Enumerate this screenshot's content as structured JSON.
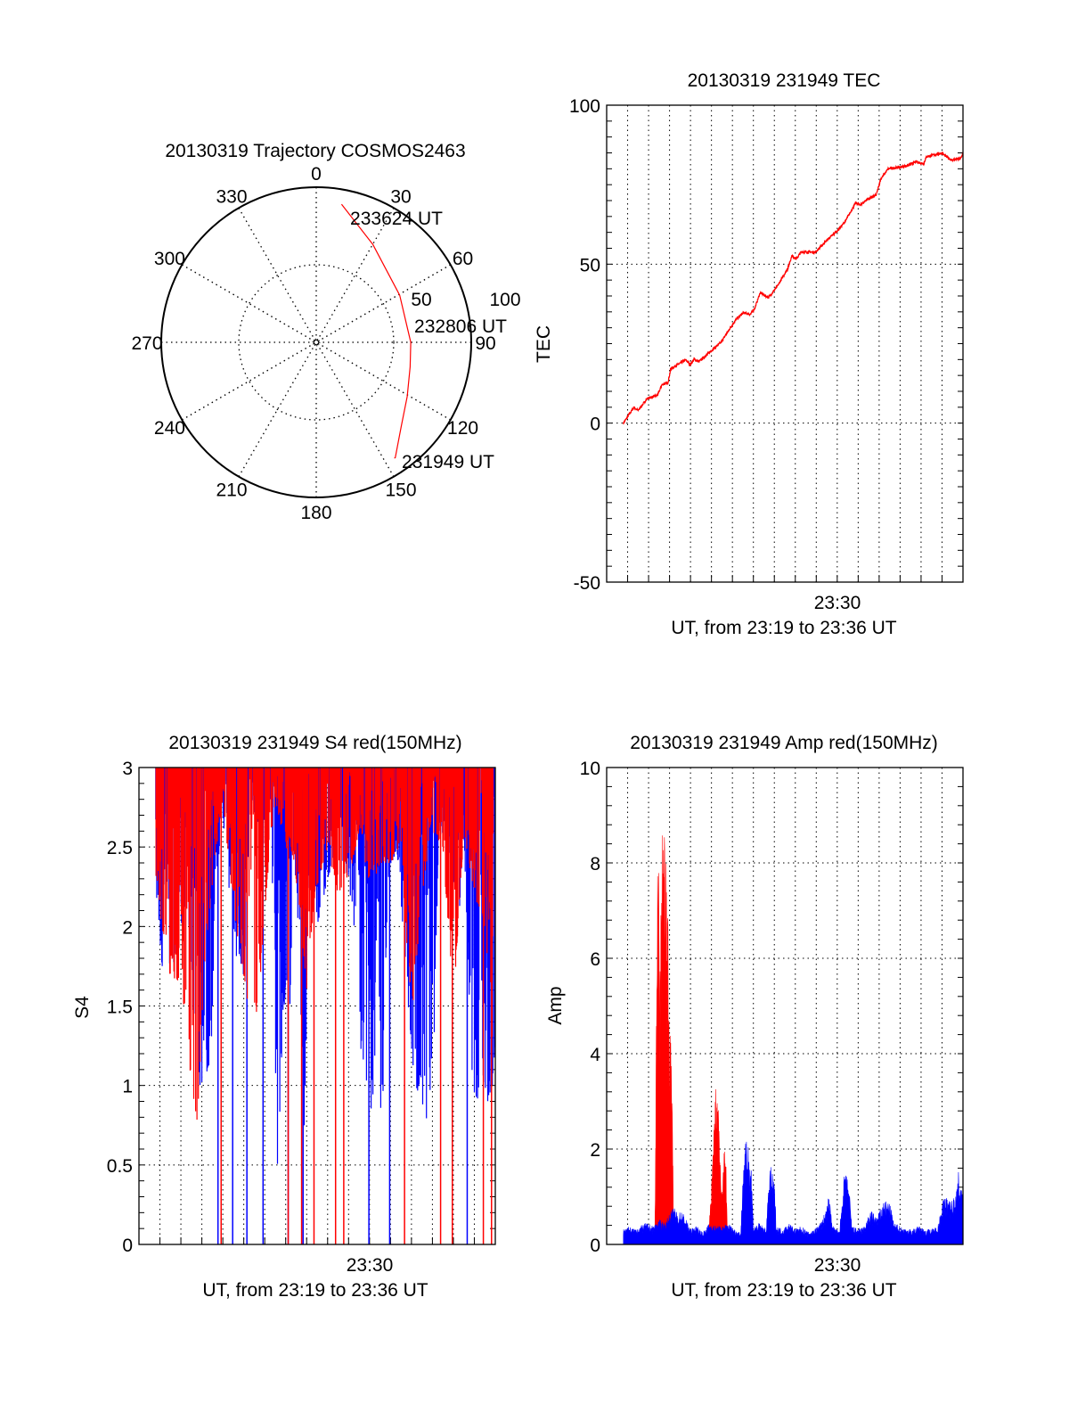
{
  "colors": {
    "red": "#ff0000",
    "blue": "#0000ff",
    "axis": "#000000"
  },
  "chart_data": [
    {
      "id": "polar",
      "type": "scatter",
      "title": "20130319 Trajectory COSMOS2463",
      "azimuth_labels": [
        "0",
        "30",
        "60",
        "90",
        "120",
        "150",
        "180",
        "210",
        "240",
        "270",
        "300",
        "330"
      ],
      "zenith_labels": [
        "50",
        "100"
      ],
      "r_max": 100,
      "trajectory": [
        {
          "az": 146,
          "r": 90
        },
        {
          "az": 145.6,
          "r": 90.2
        },
        {
          "az": 134.7,
          "r": 77.1
        },
        {
          "az": 120.8,
          "r": 68.3
        },
        {
          "az": 104.6,
          "r": 62.6
        },
        {
          "az": 90,
          "r": 61
        },
        {
          "az": 83,
          "r": 59.7
        },
        {
          "az": 60.6,
          "r": 61.8
        },
        {
          "az": 30.1,
          "r": 72.9
        },
        {
          "az": 10.4,
          "r": 90.5
        }
      ],
      "time_labels": [
        "231949 UT",
        "232806 UT",
        "233624 UT"
      ]
    },
    {
      "id": "tec",
      "type": "line",
      "title": "20130319 231949 TEC",
      "xlabel": "UT, from 23:19 to 23:36 UT",
      "ylabel": "TEC",
      "xlim_minutes_after_2319": [
        0,
        17
      ],
      "x_tick_label": "23:30",
      "ylim": [
        -50,
        100
      ],
      "y_ticks": [
        "100",
        "50",
        "0",
        "-50"
      ],
      "grid": true,
      "series": [
        {
          "name": "TEC",
          "color": "red",
          "points": [
            [
              0.8,
              0
            ],
            [
              1.3,
              5
            ],
            [
              1.5,
              3.9
            ],
            [
              1.93,
              7.7
            ],
            [
              2.43,
              8.8
            ],
            [
              2.64,
              12.1
            ],
            [
              2.92,
              12.7
            ],
            [
              3.06,
              17.1
            ],
            [
              3.77,
              19.9
            ],
            [
              3.98,
              18.4
            ],
            [
              4.19,
              20.1
            ],
            [
              4.4,
              19.3
            ],
            [
              4.96,
              22.6
            ],
            [
              5.46,
              25.4
            ],
            [
              5.88,
              29.8
            ],
            [
              6.16,
              32.5
            ],
            [
              6.52,
              34.7
            ],
            [
              6.87,
              34.2
            ],
            [
              7.08,
              36.4
            ],
            [
              7.32,
              41
            ],
            [
              7.72,
              39.5
            ],
            [
              8.14,
              43
            ],
            [
              8.63,
              48.5
            ],
            [
              8.84,
              52.7
            ],
            [
              9.05,
              51.6
            ],
            [
              9.27,
              53.8
            ],
            [
              9.97,
              53.8
            ],
            [
              10.39,
              56.8
            ],
            [
              11.03,
              60.7
            ],
            [
              11.38,
              63.4
            ],
            [
              11.66,
              66.7
            ],
            [
              11.88,
              69.3
            ],
            [
              12.09,
              68.6
            ],
            [
              12.44,
              70.4
            ],
            [
              12.86,
              71.7
            ],
            [
              13.07,
              76.7
            ],
            [
              13.43,
              80
            ],
            [
              13.99,
              80.5
            ],
            [
              14.41,
              81.1
            ],
            [
              14.77,
              82.2
            ],
            [
              15.12,
              81.6
            ],
            [
              15.26,
              83.8
            ],
            [
              15.97,
              84.9
            ],
            [
              16.46,
              82.7
            ],
            [
              16.89,
              83.2
            ],
            [
              17,
              85.1
            ]
          ]
        }
      ]
    },
    {
      "id": "s4",
      "type": "line",
      "title": "20130319 231949 S4 red(150MHz)",
      "xlabel": "UT, from 23:19 to 23:36 UT",
      "ylabel": "S4",
      "xlim_minutes_after_2319": [
        0,
        17
      ],
      "x_tick_label": "23:30",
      "ylim": [
        0,
        3
      ],
      "y_ticks": [
        "3",
        "2.5",
        "2",
        "1.5",
        "1",
        "0.5",
        "0"
      ],
      "grid": true,
      "series": [
        {
          "name": "blue",
          "color": "blue",
          "lower_envelope": [
            [
              0.8,
              2.2
            ],
            [
              1.0,
              1.8
            ],
            [
              1.4,
              1.6
            ],
            [
              1.7,
              1.8
            ],
            [
              2.0,
              2.0
            ],
            [
              2.3,
              2.2
            ],
            [
              2.7,
              1.2
            ],
            [
              2.9,
              0.9
            ],
            [
              3.1,
              1.0
            ],
            [
              3.4,
              1.0
            ],
            [
              3.7,
              2.3
            ],
            [
              4.0,
              2.7
            ],
            [
              4.5,
              1.9
            ],
            [
              5.0,
              1.6
            ],
            [
              5.3,
              2.8
            ],
            [
              5.8,
              2.6
            ],
            [
              6.3,
              2.8
            ],
            [
              6.6,
              0.4
            ],
            [
              6.9,
              1.5
            ],
            [
              7.2,
              1.5
            ],
            [
              7.5,
              2.4
            ],
            [
              7.9,
              0.5
            ],
            [
              8.1,
              2.5
            ],
            [
              8.5,
              2.0
            ],
            [
              9.0,
              2.3
            ],
            [
              9.5,
              2.5
            ],
            [
              10.0,
              2.3
            ],
            [
              10.4,
              1.8
            ],
            [
              10.6,
              1.2
            ],
            [
              10.9,
              1.0
            ],
            [
              11.2,
              0.75
            ],
            [
              11.4,
              2.5
            ],
            [
              11.55,
              0.45
            ],
            [
              11.9,
              2.3
            ],
            [
              12.3,
              2.5
            ],
            [
              12.7,
              1.8
            ],
            [
              13.0,
              1.2
            ],
            [
              13.2,
              1.0
            ],
            [
              13.5,
              0.9
            ],
            [
              13.8,
              0.75
            ],
            [
              14.0,
              0.8
            ],
            [
              14.3,
              2.6
            ],
            [
              14.8,
              2.5
            ],
            [
              15.2,
              1.9
            ],
            [
              15.5,
              2.6
            ],
            [
              15.9,
              0.95
            ],
            [
              16.3,
              0.9
            ],
            [
              16.7,
              0.9
            ],
            [
              17.0,
              1.0
            ]
          ],
          "dropouts_to_zero": [
            3.77,
            4.47,
            5.15,
            5.92,
            7.12,
            7.83,
            10.97,
            11.96,
            15.66
          ]
        },
        {
          "name": "red",
          "color": "red",
          "lower_envelope": [
            [
              0.8,
              2.3
            ],
            [
              1.2,
              1.9
            ],
            [
              1.6,
              1.6
            ],
            [
              2.0,
              1.7
            ],
            [
              2.4,
              1.1
            ],
            [
              2.8,
              0.75
            ],
            [
              3.0,
              1.4
            ],
            [
              3.3,
              2.0
            ],
            [
              3.6,
              2.4
            ],
            [
              4.0,
              2.8
            ],
            [
              4.5,
              2.1
            ],
            [
              5.0,
              1.7
            ],
            [
              5.3,
              1.4
            ],
            [
              5.6,
              1.3
            ],
            [
              6.0,
              2.1
            ],
            [
              6.5,
              2.8
            ],
            [
              7.0,
              2.5
            ],
            [
              7.5,
              2.3
            ],
            [
              8.0,
              1.6
            ],
            [
              8.4,
              2.2
            ],
            [
              9.0,
              2.5
            ],
            [
              9.5,
              2.2
            ],
            [
              10.0,
              2.3
            ],
            [
              10.5,
              2.6
            ],
            [
              11.0,
              2.2
            ],
            [
              11.5,
              2.4
            ],
            [
              12.0,
              2.4
            ],
            [
              12.5,
              2.5
            ],
            [
              13.0,
              1.4
            ],
            [
              13.5,
              2.2
            ],
            [
              14.0,
              2.6
            ],
            [
              14.5,
              2.5
            ],
            [
              15.0,
              1.5
            ],
            [
              15.5,
              2.6
            ],
            [
              16.0,
              2.2
            ],
            [
              16.5,
              2.0
            ],
            [
              16.9,
              1.2
            ]
          ],
          "dropouts_to_zero": [
            3.92,
            7.12,
            7.76,
            8.35,
            9.38,
            9.77,
            12.67,
            14.39,
            14.95,
            16.43,
            16.82
          ]
        }
      ]
    },
    {
      "id": "amp",
      "type": "area",
      "title": "20130319 231949 Amp red(150MHz)",
      "xlabel": "UT, from 23:19 to 23:36 UT",
      "ylabel": "Amp",
      "xlim_minutes_after_2319": [
        0,
        17
      ],
      "x_tick_label": "23:30",
      "ylim": [
        0,
        10
      ],
      "y_ticks": [
        "10",
        "8",
        "6",
        "4",
        "2",
        "0"
      ],
      "grid": true,
      "series": [
        {
          "name": "red",
          "color": "red",
          "points": [
            [
              2.3,
              0.1
            ],
            [
              2.4,
              5.9
            ],
            [
              2.45,
              8.05
            ],
            [
              2.55,
              5.6
            ],
            [
              2.62,
              7.3
            ],
            [
              2.7,
              8.9
            ],
            [
              2.8,
              7.7
            ],
            [
              2.9,
              6.5
            ],
            [
              3.0,
              4.8
            ],
            [
              3.05,
              4.2
            ],
            [
              3.15,
              2.3
            ],
            [
              3.2,
              0.1
            ],
            [
              4.85,
              0.1
            ],
            [
              4.9,
              0.6
            ],
            [
              5.0,
              1.0
            ],
            [
              5.15,
              2.7
            ],
            [
              5.25,
              3.3
            ],
            [
              5.35,
              2.9
            ],
            [
              5.45,
              1.3
            ],
            [
              5.55,
              1.2
            ],
            [
              5.65,
              2.5
            ],
            [
              5.75,
              0.3
            ],
            [
              5.8,
              0.1
            ]
          ]
        },
        {
          "name": "blue",
          "color": "blue",
          "points": [
            [
              0.8,
              0.25
            ],
            [
              1.0,
              0.3
            ],
            [
              1.3,
              0.25
            ],
            [
              1.6,
              0.3
            ],
            [
              1.9,
              0.35
            ],
            [
              2.2,
              0.3
            ],
            [
              2.5,
              0.4
            ],
            [
              2.8,
              0.35
            ],
            [
              3.0,
              0.5
            ],
            [
              3.2,
              0.6
            ],
            [
              3.4,
              0.5
            ],
            [
              3.6,
              0.55
            ],
            [
              3.8,
              0.4
            ],
            [
              4.0,
              0.25
            ],
            [
              4.3,
              0.3
            ],
            [
              4.6,
              0.2
            ],
            [
              4.9,
              0.35
            ],
            [
              5.2,
              0.3
            ],
            [
              5.5,
              0.3
            ],
            [
              5.8,
              0.35
            ],
            [
              6.1,
              0.25
            ],
            [
              6.4,
              0.2
            ],
            [
              6.55,
              1.6
            ],
            [
              6.75,
              1.7
            ],
            [
              6.9,
              1.3
            ],
            [
              7.0,
              0.3
            ],
            [
              7.3,
              0.35
            ],
            [
              7.6,
              0.25
            ],
            [
              7.8,
              1.3
            ],
            [
              8.0,
              1.0
            ],
            [
              8.1,
              0.3
            ],
            [
              8.4,
              0.25
            ],
            [
              8.7,
              0.35
            ],
            [
              9.0,
              0.25
            ],
            [
              9.3,
              0.3
            ],
            [
              9.6,
              0.2
            ],
            [
              9.9,
              0.25
            ],
            [
              10.2,
              0.35
            ],
            [
              10.5,
              0.6
            ],
            [
              10.6,
              0.8
            ],
            [
              10.8,
              0.3
            ],
            [
              11.1,
              0.2
            ],
            [
              11.35,
              1.2
            ],
            [
              11.55,
              1.0
            ],
            [
              11.7,
              0.3
            ],
            [
              12.0,
              0.25
            ],
            [
              12.3,
              0.3
            ],
            [
              12.6,
              0.55
            ],
            [
              12.9,
              0.45
            ],
            [
              13.2,
              0.7
            ],
            [
              13.5,
              0.7
            ],
            [
              13.7,
              0.35
            ],
            [
              14.0,
              0.3
            ],
            [
              14.3,
              0.25
            ],
            [
              14.6,
              0.25
            ],
            [
              14.9,
              0.3
            ],
            [
              15.2,
              0.25
            ],
            [
              15.5,
              0.25
            ],
            [
              15.8,
              0.3
            ],
            [
              16.0,
              0.7
            ],
            [
              16.2,
              0.8
            ],
            [
              16.4,
              0.7
            ],
            [
              16.6,
              0.8
            ],
            [
              16.8,
              1.2
            ],
            [
              17.0,
              0.75
            ]
          ]
        }
      ]
    }
  ]
}
